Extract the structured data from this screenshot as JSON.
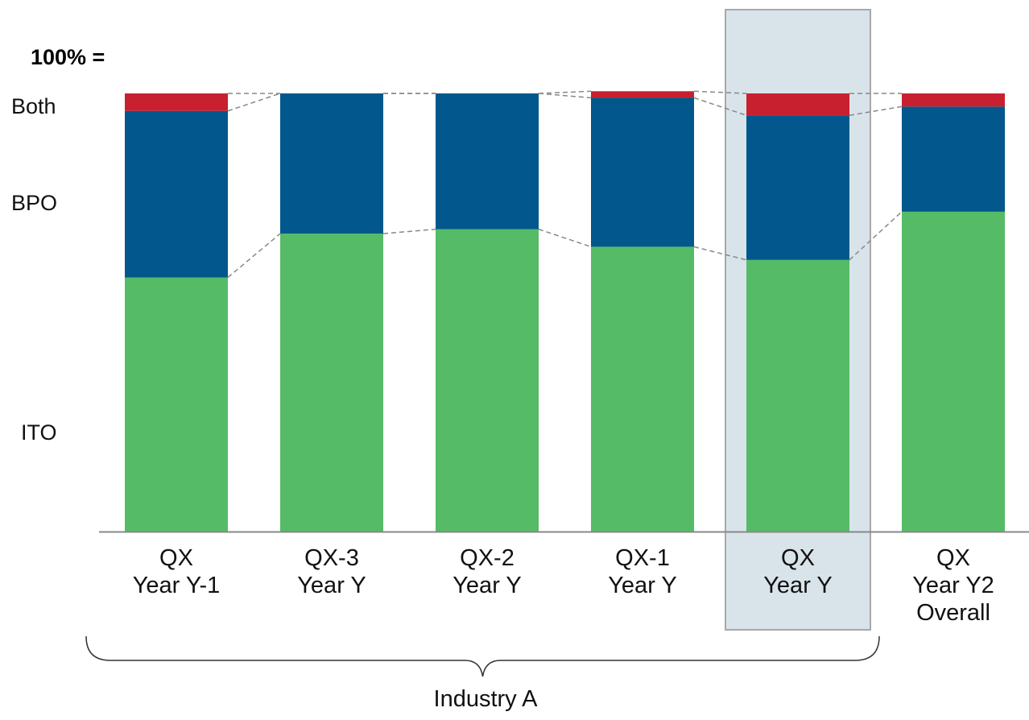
{
  "colors": {
    "ITO": "#55bb66",
    "BPO": "#02578c",
    "Both": "#c8202f",
    "highlight_fill": "#d8e4ea",
    "highlight_stroke": "#a8a8a8",
    "connector": "#888888"
  },
  "total_prefix": "100% =",
  "row_labels": [
    "Both",
    "BPO",
    "ITO"
  ],
  "group_label": "Industry A",
  "chart_data": {
    "type": "bar",
    "stacked": true,
    "normalized_to_100": true,
    "categories": [
      [
        "QX",
        "Year Y-1"
      ],
      [
        "QX-3",
        "Year Y"
      ],
      [
        "QX-2",
        "Year Y"
      ],
      [
        "QX-1",
        "Year Y"
      ],
      [
        "QX",
        "Year Y"
      ],
      [
        "QX",
        "Year Y2",
        "Overall"
      ]
    ],
    "series": [
      {
        "name": "ITO",
        "values": [
          58,
          68,
          69,
          65,
          62,
          73
        ]
      },
      {
        "name": "BPO",
        "values": [
          38,
          32,
          31,
          34,
          33,
          24
        ]
      },
      {
        "name": "Both",
        "values": [
          4,
          0,
          0,
          1.5,
          5,
          3
        ]
      }
    ],
    "highlighted_category_index": 4,
    "bracket_spans_categories": [
      0,
      4
    ],
    "grid": false,
    "legend": "row labels at left",
    "ylim": [
      0,
      100
    ]
  }
}
